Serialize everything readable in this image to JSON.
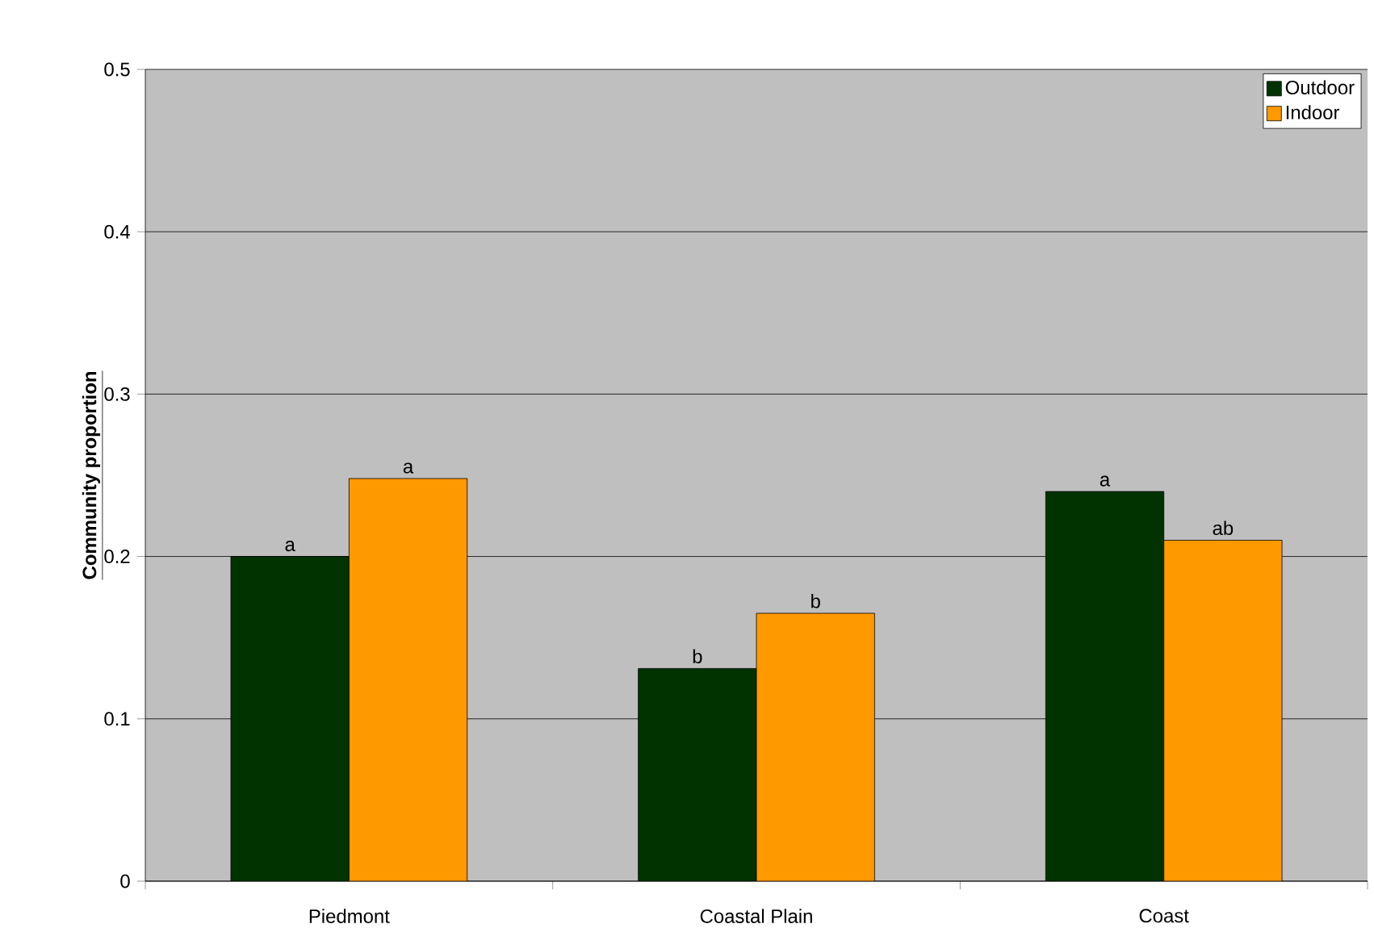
{
  "chart_data": {
    "type": "bar",
    "ylabel": "Community proportion",
    "categories": [
      "Piedmont",
      "Coastal Plain",
      "Coast"
    ],
    "series": [
      {
        "name": "Outdoor",
        "color": "#003300",
        "values": [
          0.2,
          0.131,
          0.24
        ]
      },
      {
        "name": "Indoor",
        "color": "#ff9900",
        "values": [
          0.248,
          0.165,
          0.21
        ]
      }
    ],
    "ylim": [
      0,
      0.5
    ],
    "yticks": [
      0,
      0.1,
      0.2,
      0.3,
      0.4,
      0.5
    ],
    "grid": "y",
    "legend": "top right",
    "annotations": [
      {
        "text": "a",
        "x": "Piedmont",
        "y": 0.2
      },
      {
        "text": "a",
        "x": "Piedmont",
        "y": 0.248
      },
      {
        "text": "b",
        "x": "Coastal Plain",
        "y": 0.131
      },
      {
        "text": "b",
        "x": "Coastal Plain",
        "y": 0.165
      },
      {
        "text": "a",
        "x": "Coast",
        "y": 0.24
      },
      {
        "text": "ab",
        "x": "Coast",
        "y": 0.21
      }
    ]
  }
}
